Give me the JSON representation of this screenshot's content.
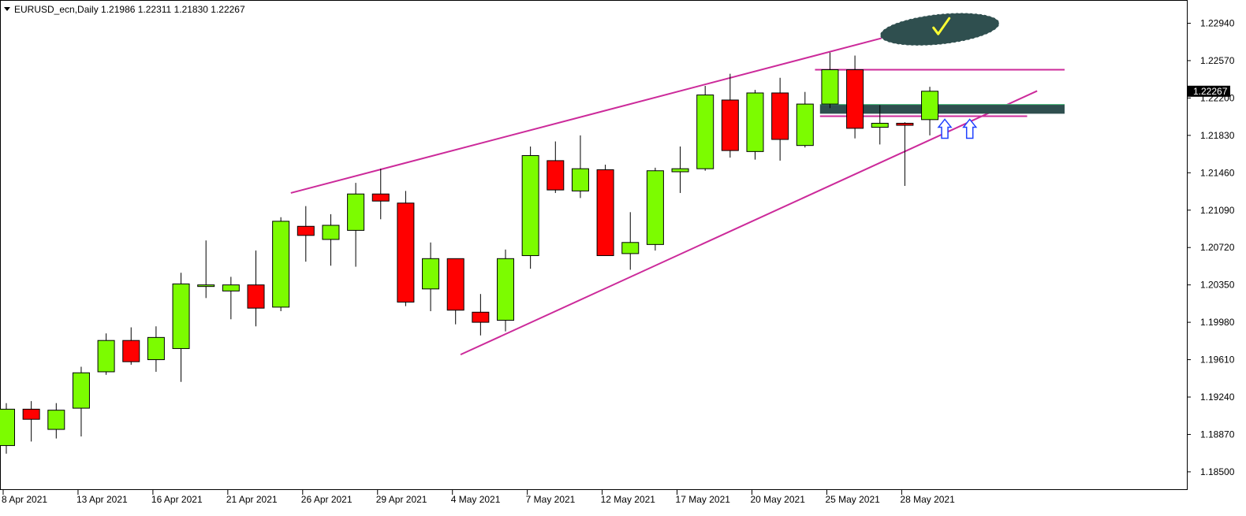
{
  "header": {
    "title": "EURUSD_ecn,Daily  1.21986 1.22311 1.21830 1.22267"
  },
  "colors": {
    "bull": "#7CFC00",
    "bear": "#FF0000",
    "outline": "#000000",
    "trendline": "#CC2A9A",
    "zone": "#2F4F4F",
    "arrow": "#1E40FF",
    "check": "#FFFF33",
    "price_label_bg": "#000000",
    "price_label_text": "#FFFFFF"
  },
  "chart_data": {
    "type": "candlestick",
    "symbol": "EURUSD_ecn",
    "timeframe": "Daily",
    "ylim": [
      1.1832,
      1.2317
    ],
    "y_ticks": [
      "1.22940",
      "1.22570",
      "1.22200",
      "1.21830",
      "1.21460",
      "1.21090",
      "1.20720",
      "1.20350",
      "1.19980",
      "1.19610",
      "1.19240",
      "1.18870",
      "1.18500"
    ],
    "x_labels": [
      {
        "label": "8 Apr 2021",
        "index": 0
      },
      {
        "label": "13 Apr 2021",
        "index": 3
      },
      {
        "label": "16 Apr 2021",
        "index": 6
      },
      {
        "label": "21 Apr 2021",
        "index": 9
      },
      {
        "label": "26 Apr 2021",
        "index": 12
      },
      {
        "label": "29 Apr 2021",
        "index": 15
      },
      {
        "label": "4 May 2021",
        "index": 18
      },
      {
        "label": "7 May 2021",
        "index": 21
      },
      {
        "label": "12 May 2021",
        "index": 24
      },
      {
        "label": "17 May 2021",
        "index": 27
      },
      {
        "label": "20 May 2021",
        "index": 30
      },
      {
        "label": "25 May 2021",
        "index": 33
      },
      {
        "label": "28 May 2021",
        "index": 36
      }
    ],
    "candles": [
      {
        "o": 1.1876,
        "h": 1.1918,
        "l": 1.1868,
        "c": 1.1912
      },
      {
        "o": 1.1912,
        "h": 1.192,
        "l": 1.188,
        "c": 1.1902
      },
      {
        "o": 1.1892,
        "h": 1.1918,
        "l": 1.1883,
        "c": 1.1911
      },
      {
        "o": 1.1913,
        "h": 1.1954,
        "l": 1.1885,
        "c": 1.1948
      },
      {
        "o": 1.1949,
        "h": 1.1987,
        "l": 1.1946,
        "c": 1.198
      },
      {
        "o": 1.198,
        "h": 1.1993,
        "l": 1.1956,
        "c": 1.1959
      },
      {
        "o": 1.1961,
        "h": 1.1994,
        "l": 1.1949,
        "c": 1.1983
      },
      {
        "o": 1.1972,
        "h": 1.2047,
        "l": 1.1939,
        "c": 1.2036
      },
      {
        "o": 1.2035,
        "h": 1.2079,
        "l": 1.2022,
        "c": 1.2035
      },
      {
        "o": 1.2029,
        "h": 1.2043,
        "l": 1.2001,
        "c": 1.2035
      },
      {
        "o": 1.2035,
        "h": 1.2069,
        "l": 1.1994,
        "c": 1.2012
      },
      {
        "o": 1.2013,
        "h": 1.2102,
        "l": 1.2009,
        "c": 1.2098
      },
      {
        "o": 1.2093,
        "h": 1.2113,
        "l": 1.2058,
        "c": 1.2084
      },
      {
        "o": 1.208,
        "h": 1.2105,
        "l": 1.2054,
        "c": 1.2094
      },
      {
        "o": 1.2089,
        "h": 1.2136,
        "l": 1.2053,
        "c": 1.2125
      },
      {
        "o": 1.2125,
        "h": 1.215,
        "l": 1.21,
        "c": 1.2118
      },
      {
        "o": 1.2116,
        "h": 1.2128,
        "l": 1.2014,
        "c": 1.2018
      },
      {
        "o": 1.2031,
        "h": 1.2077,
        "l": 1.2009,
        "c": 1.2061
      },
      {
        "o": 1.2061,
        "h": 1.206,
        "l": 1.1996,
        "c": 1.201
      },
      {
        "o": 1.2008,
        "h": 1.2026,
        "l": 1.1985,
        "c": 1.1998
      },
      {
        "o": 1.2,
        "h": 1.207,
        "l": 1.1989,
        "c": 1.2061
      },
      {
        "o": 1.2064,
        "h": 1.2172,
        "l": 1.2051,
        "c": 1.2163
      },
      {
        "o": 1.2158,
        "h": 1.2177,
        "l": 1.2126,
        "c": 1.2129
      },
      {
        "o": 1.2128,
        "h": 1.2183,
        "l": 1.2121,
        "c": 1.215
      },
      {
        "o": 1.2149,
        "h": 1.2154,
        "l": 1.2064,
        "c": 1.2064
      },
      {
        "o": 1.2066,
        "h": 1.2107,
        "l": 1.205,
        "c": 1.2077
      },
      {
        "o": 1.2075,
        "h": 1.2151,
        "l": 1.2069,
        "c": 1.2148
      },
      {
        "o": 1.2147,
        "h": 1.2172,
        "l": 1.2126,
        "c": 1.215
      },
      {
        "o": 1.215,
        "h": 1.2232,
        "l": 1.2148,
        "c": 1.2223
      },
      {
        "o": 1.2218,
        "h": 1.2244,
        "l": 1.2161,
        "c": 1.2168
      },
      {
        "o": 1.2167,
        "h": 1.2228,
        "l": 1.2159,
        "c": 1.2225
      },
      {
        "o": 1.2225,
        "h": 1.224,
        "l": 1.2158,
        "c": 1.2179
      },
      {
        "o": 1.2173,
        "h": 1.2226,
        "l": 1.2171,
        "c": 1.2214
      },
      {
        "o": 1.2214,
        "h": 1.2265,
        "l": 1.221,
        "c": 1.2248
      },
      {
        "o": 1.2248,
        "h": 1.2262,
        "l": 1.218,
        "c": 1.219
      },
      {
        "o": 1.2191,
        "h": 1.2213,
        "l": 1.2174,
        "c": 1.2195
      },
      {
        "o": 1.2195,
        "h": 1.2196,
        "l": 1.2133,
        "c": 1.2193
      },
      {
        "o": 1.21986,
        "h": 1.22311,
        "l": 1.2183,
        "c": 1.22267
      }
    ],
    "current_price": "1.22267",
    "trendlines": [
      {
        "name": "upper-channel",
        "from": {
          "index": 11.4,
          "price": 1.2126
        },
        "to": {
          "index": 37.2,
          "price": 1.2293
        }
      },
      {
        "name": "lower-support",
        "from": {
          "index": 18.2,
          "price": 1.1966
        },
        "to": {
          "index": 41.3,
          "price": 1.2227
        }
      },
      {
        "name": "resistance-horizontal",
        "from": {
          "index": 32.4,
          "price": 1.2248
        },
        "to": {
          "index": 42.4,
          "price": 1.2248
        }
      },
      {
        "name": "mid-horizontal",
        "from": {
          "index": 32.6,
          "price": 1.2202
        },
        "to": {
          "index": 40.9,
          "price": 1.2202
        }
      }
    ],
    "zone": {
      "from_index": 32.6,
      "to_index": 42.4,
      "top": 1.2212,
      "bottom": 1.2206
    },
    "arrows": [
      {
        "index": 37.6,
        "price": 1.2188
      },
      {
        "index": 38.6,
        "price": 1.2188
      }
    ],
    "target_ellipse": {
      "center_index": 37.4,
      "center_price": 1.2288,
      "r_index": 2.4,
      "r_price": 0.0015
    }
  }
}
